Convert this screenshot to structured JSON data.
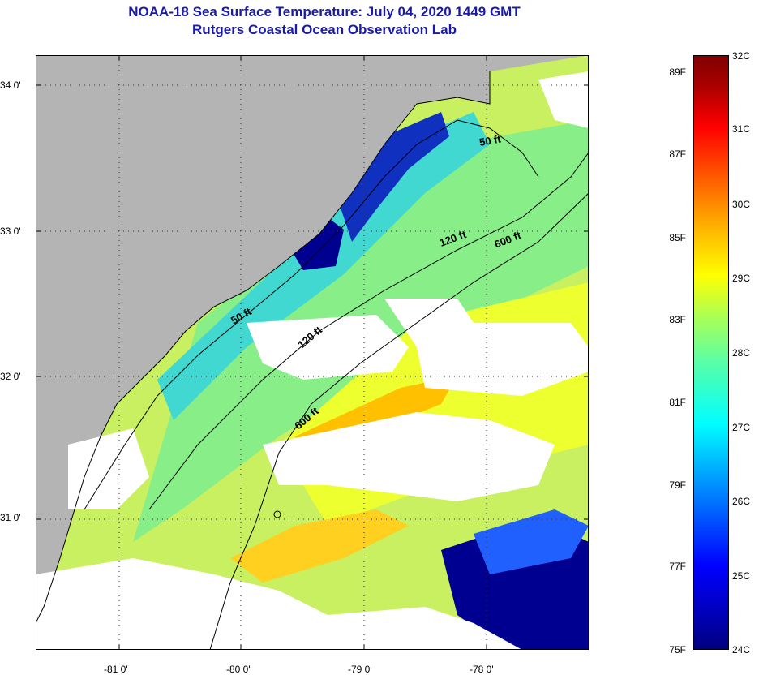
{
  "header": {
    "title": "NOAA-18 Sea Surface Temperature:  July 04, 2020 1449 GMT",
    "subtitle": "Rutgers Coastal Ocean Observation Lab"
  },
  "map": {
    "lon_ticks": [
      {
        "value": -81,
        "label": "-81 0'"
      },
      {
        "value": -80,
        "label": "-80 0'"
      },
      {
        "value": -79,
        "label": "-79 0'"
      },
      {
        "value": -78,
        "label": "-78 0'"
      }
    ],
    "lat_ticks": [
      {
        "value": 34,
        "label": "34 0'"
      },
      {
        "value": 33,
        "label": "33 0'"
      },
      {
        "value": 32,
        "label": "32 0'"
      },
      {
        "value": 31,
        "label": "31 0'"
      }
    ],
    "contour_labels": [
      {
        "id": "a",
        "text": "50 ft"
      },
      {
        "id": "b",
        "text": "120 ft"
      },
      {
        "id": "c",
        "text": "600 ft"
      },
      {
        "id": "d",
        "text": "50 ft"
      },
      {
        "id": "e",
        "text": "120 ft"
      },
      {
        "id": "f",
        "text": "600 ft"
      }
    ],
    "colors": {
      "land": "#b4b4b4",
      "cloud": "#ffffff",
      "cold": "#000080",
      "warm": "#ffaa00"
    }
  },
  "colorbar": {
    "fahrenheit": [
      "89F",
      "87F",
      "85F",
      "83F",
      "81F",
      "79F",
      "77F",
      "75F"
    ],
    "celsius": [
      "32C",
      "31C",
      "30C",
      "29C",
      "28C",
      "27C",
      "26C",
      "25C",
      "24C"
    ]
  }
}
